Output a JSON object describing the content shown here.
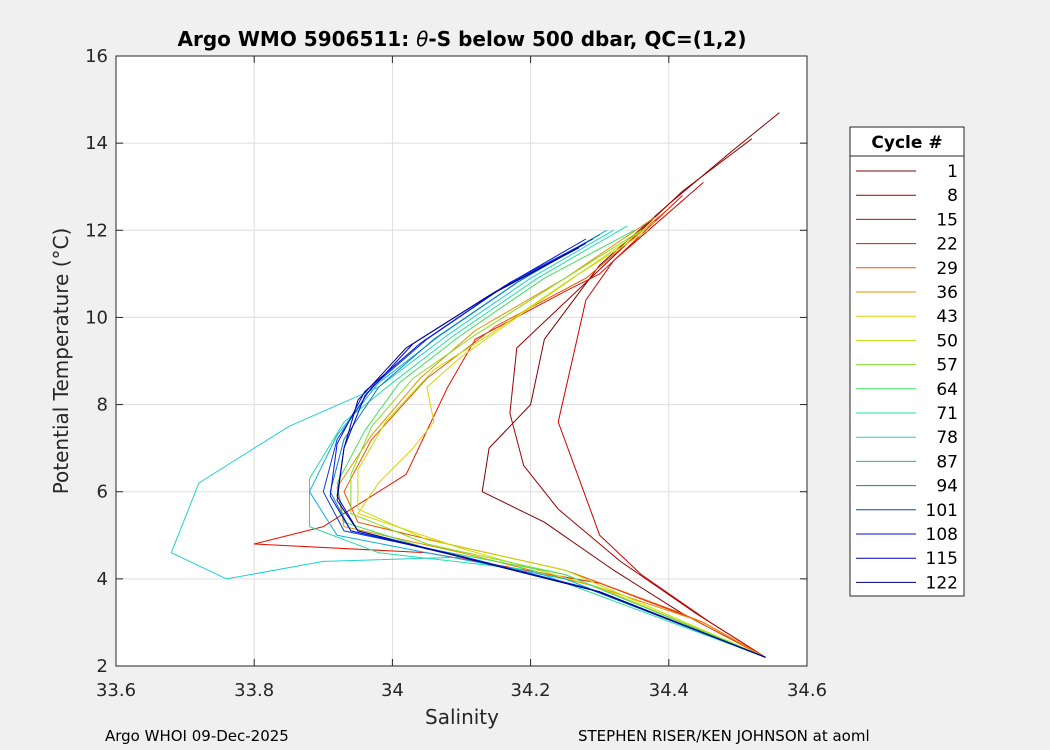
{
  "chart_data": {
    "type": "line",
    "title": "Argo WMO 5906511: θ-S below 500 dbar,  QC=(1,2)",
    "title_prefix": "Argo WMO 5906511: ",
    "title_theta": "θ",
    "title_suffix": "-S below 500 dbar,  QC=(1,2)",
    "xlabel": "Salinity",
    "ylabel": "Potential Temperature (°C)",
    "xlim": [
      33.6,
      34.6
    ],
    "ylim": [
      2,
      16
    ],
    "xticks": [
      "33.6",
      "33.8",
      "34",
      "34.2",
      "34.4",
      "34.6"
    ],
    "yticks": [
      "2",
      "4",
      "6",
      "8",
      "10",
      "12",
      "14",
      "16"
    ],
    "grid": true,
    "legend": {
      "title": "Cycle #",
      "placement": "outside-right"
    },
    "series": [
      {
        "name": "1",
        "color": "#800000",
        "values": [
          [
            34.56,
            14.7
          ],
          [
            34.49,
            13.8
          ],
          [
            34.4,
            12.6
          ],
          [
            34.3,
            11.2
          ],
          [
            34.22,
            9.5
          ],
          [
            34.2,
            8.0
          ],
          [
            34.14,
            7.0
          ],
          [
            34.13,
            6.0
          ],
          [
            34.22,
            5.3
          ],
          [
            34.32,
            4.2
          ],
          [
            34.42,
            3.2
          ],
          [
            34.54,
            2.2
          ]
        ]
      },
      {
        "name": "8",
        "color": "#a00000",
        "values": [
          [
            34.52,
            14.1
          ],
          [
            34.42,
            12.9
          ],
          [
            34.3,
            11.1
          ],
          [
            34.18,
            9.3
          ],
          [
            34.17,
            7.8
          ],
          [
            34.19,
            6.6
          ],
          [
            34.24,
            5.6
          ],
          [
            34.33,
            4.4
          ],
          [
            34.44,
            3.2
          ],
          [
            34.54,
            2.2
          ]
        ]
      },
      {
        "name": "15",
        "color": "#cc0000",
        "values": [
          [
            34.45,
            13.1
          ],
          [
            34.32,
            11.3
          ],
          [
            34.28,
            10.4
          ],
          [
            34.26,
            9.0
          ],
          [
            34.24,
            7.6
          ],
          [
            34.27,
            6.3
          ],
          [
            34.3,
            5.0
          ],
          [
            34.36,
            4.1
          ],
          [
            34.46,
            3.0
          ],
          [
            34.54,
            2.2
          ]
        ]
      },
      {
        "name": "22",
        "color": "#e81000",
        "values": [
          [
            34.42,
            12.8
          ],
          [
            34.3,
            11.0
          ],
          [
            34.25,
            10.6
          ],
          [
            34.12,
            9.5
          ],
          [
            34.08,
            8.4
          ],
          [
            34.05,
            7.4
          ],
          [
            34.02,
            6.4
          ],
          [
            33.9,
            5.2
          ],
          [
            33.8,
            4.8
          ],
          [
            34.05,
            4.6
          ],
          [
            34.3,
            3.9
          ],
          [
            34.45,
            3.0
          ],
          [
            34.54,
            2.2
          ]
        ]
      },
      {
        "name": "29",
        "color": "#f05000",
        "values": [
          [
            34.4,
            12.5
          ],
          [
            34.28,
            10.9
          ],
          [
            34.15,
            9.8
          ],
          [
            34.05,
            8.6
          ],
          [
            33.97,
            7.2
          ],
          [
            33.93,
            6.0
          ],
          [
            33.95,
            5.3
          ],
          [
            34.08,
            4.8
          ],
          [
            34.25,
            4.2
          ],
          [
            34.42,
            3.2
          ],
          [
            34.54,
            2.2
          ]
        ]
      },
      {
        "name": "36",
        "color": "#e89000",
        "values": [
          [
            34.38,
            12.3
          ],
          [
            34.25,
            10.9
          ],
          [
            34.12,
            9.7
          ],
          [
            34.04,
            8.6
          ],
          [
            33.97,
            7.3
          ],
          [
            33.92,
            6.1
          ],
          [
            33.93,
            5.2
          ],
          [
            34.1,
            4.6
          ],
          [
            34.3,
            3.8
          ],
          [
            34.45,
            3.0
          ],
          [
            34.54,
            2.2
          ]
        ]
      },
      {
        "name": "43",
        "color": "#e0d000",
        "values": [
          [
            34.38,
            12.2
          ],
          [
            34.27,
            11.0
          ],
          [
            34.18,
            10.0
          ],
          [
            34.1,
            9.1
          ],
          [
            34.05,
            8.4
          ],
          [
            34.06,
            7.6
          ],
          [
            34.03,
            7.0
          ],
          [
            33.98,
            6.2
          ],
          [
            33.95,
            5.5
          ],
          [
            34.1,
            4.7
          ],
          [
            34.3,
            3.8
          ],
          [
            34.54,
            2.2
          ]
        ]
      },
      {
        "name": "50",
        "color": "#c0e000",
        "values": [
          [
            34.37,
            12.0
          ],
          [
            34.26,
            10.9
          ],
          [
            34.14,
            9.6
          ],
          [
            34.06,
            8.8
          ],
          [
            33.99,
            7.6
          ],
          [
            33.95,
            6.5
          ],
          [
            33.95,
            5.6
          ],
          [
            34.05,
            4.9
          ],
          [
            34.25,
            4.2
          ],
          [
            34.54,
            2.2
          ]
        ]
      },
      {
        "name": "57",
        "color": "#80e020",
        "values": [
          [
            34.36,
            12.0
          ],
          [
            34.24,
            10.8
          ],
          [
            34.12,
            9.6
          ],
          [
            34.03,
            8.6
          ],
          [
            33.97,
            7.5
          ],
          [
            33.94,
            6.4
          ],
          [
            33.94,
            5.5
          ],
          [
            34.05,
            4.8
          ],
          [
            34.25,
            4.1
          ],
          [
            34.54,
            2.2
          ]
        ]
      },
      {
        "name": "64",
        "color": "#40e060",
        "values": [
          [
            34.35,
            12.0
          ],
          [
            34.22,
            10.9
          ],
          [
            34.1,
            9.6
          ],
          [
            34.01,
            8.5
          ],
          [
            33.96,
            7.4
          ],
          [
            33.92,
            6.2
          ],
          [
            33.93,
            5.3
          ],
          [
            34.05,
            4.7
          ],
          [
            34.25,
            4.1
          ],
          [
            34.54,
            2.2
          ]
        ]
      },
      {
        "name": "71",
        "color": "#20e0a0",
        "values": [
          [
            34.34,
            12.1
          ],
          [
            34.21,
            10.9
          ],
          [
            34.09,
            9.6
          ],
          [
            34.0,
            8.5
          ],
          [
            33.93,
            7.6
          ],
          [
            33.88,
            6.3
          ],
          [
            33.88,
            5.2
          ],
          [
            33.98,
            4.6
          ],
          [
            34.2,
            4.2
          ],
          [
            34.54,
            2.2
          ]
        ]
      },
      {
        "name": "78",
        "color": "#20d0d0",
        "values": [
          [
            34.32,
            12.0
          ],
          [
            34.2,
            10.9
          ],
          [
            34.08,
            9.6
          ],
          [
            33.98,
            8.4
          ],
          [
            33.85,
            7.5
          ],
          [
            33.72,
            6.2
          ],
          [
            33.68,
            4.6
          ],
          [
            33.76,
            4.0
          ],
          [
            33.9,
            4.4
          ],
          [
            34.1,
            4.5
          ],
          [
            34.3,
            3.7
          ],
          [
            34.54,
            2.2
          ]
        ]
      },
      {
        "name": "87",
        "color": "#10b0e0",
        "values": [
          [
            34.31,
            12.0
          ],
          [
            34.19,
            10.9
          ],
          [
            34.07,
            9.6
          ],
          [
            33.98,
            8.5
          ],
          [
            33.92,
            7.3
          ],
          [
            33.88,
            6.0
          ],
          [
            33.92,
            5.0
          ],
          [
            34.05,
            4.6
          ],
          [
            34.25,
            4.0
          ],
          [
            34.54,
            2.2
          ]
        ]
      },
      {
        "name": "94",
        "color": "#0080c0",
        "values": [
          [
            34.3,
            11.9
          ],
          [
            34.18,
            10.8
          ],
          [
            34.06,
            9.5
          ],
          [
            33.98,
            8.4
          ],
          [
            33.93,
            7.2
          ],
          [
            33.91,
            6.0
          ],
          [
            33.94,
            5.1
          ],
          [
            34.08,
            4.6
          ],
          [
            34.28,
            3.8
          ],
          [
            34.54,
            2.2
          ]
        ]
      },
      {
        "name": "101",
        "color": "#0040d0",
        "values": [
          [
            34.29,
            11.8
          ],
          [
            34.17,
            10.8
          ],
          [
            34.05,
            9.5
          ],
          [
            33.97,
            8.4
          ],
          [
            33.92,
            7.2
          ],
          [
            33.9,
            6.0
          ],
          [
            33.93,
            5.1
          ],
          [
            34.08,
            4.6
          ],
          [
            34.28,
            3.8
          ],
          [
            34.54,
            2.2
          ]
        ]
      },
      {
        "name": "108",
        "color": "#0010e0",
        "values": [
          [
            34.28,
            11.8
          ],
          [
            34.16,
            10.7
          ],
          [
            34.04,
            9.4
          ],
          [
            33.96,
            8.3
          ],
          [
            33.92,
            7.1
          ],
          [
            33.91,
            5.9
          ],
          [
            33.94,
            5.1
          ],
          [
            34.1,
            4.5
          ],
          [
            34.3,
            3.7
          ],
          [
            34.54,
            2.2
          ]
        ]
      },
      {
        "name": "115",
        "color": "#0000c0",
        "values": [
          [
            34.28,
            11.7
          ],
          [
            34.15,
            10.6
          ],
          [
            34.03,
            9.4
          ],
          [
            33.96,
            8.2
          ],
          [
            33.93,
            7.0
          ],
          [
            33.92,
            5.9
          ],
          [
            33.95,
            5.1
          ],
          [
            34.1,
            4.5
          ],
          [
            34.3,
            3.7
          ],
          [
            34.54,
            2.2
          ]
        ]
      },
      {
        "name": "122",
        "color": "#000090",
        "values": [
          [
            34.27,
            11.6
          ],
          [
            34.14,
            10.5
          ],
          [
            34.02,
            9.3
          ],
          [
            33.95,
            8.1
          ],
          [
            33.93,
            7.0
          ],
          [
            33.92,
            5.8
          ],
          [
            33.95,
            5.1
          ],
          [
            34.1,
            4.5
          ],
          [
            34.3,
            3.7
          ],
          [
            34.54,
            2.2
          ]
        ]
      }
    ]
  },
  "footer": {
    "left": "Argo WHOI 09-Dec-2025",
    "right": "STEPHEN RISER/KEN JOHNSON at aoml"
  }
}
